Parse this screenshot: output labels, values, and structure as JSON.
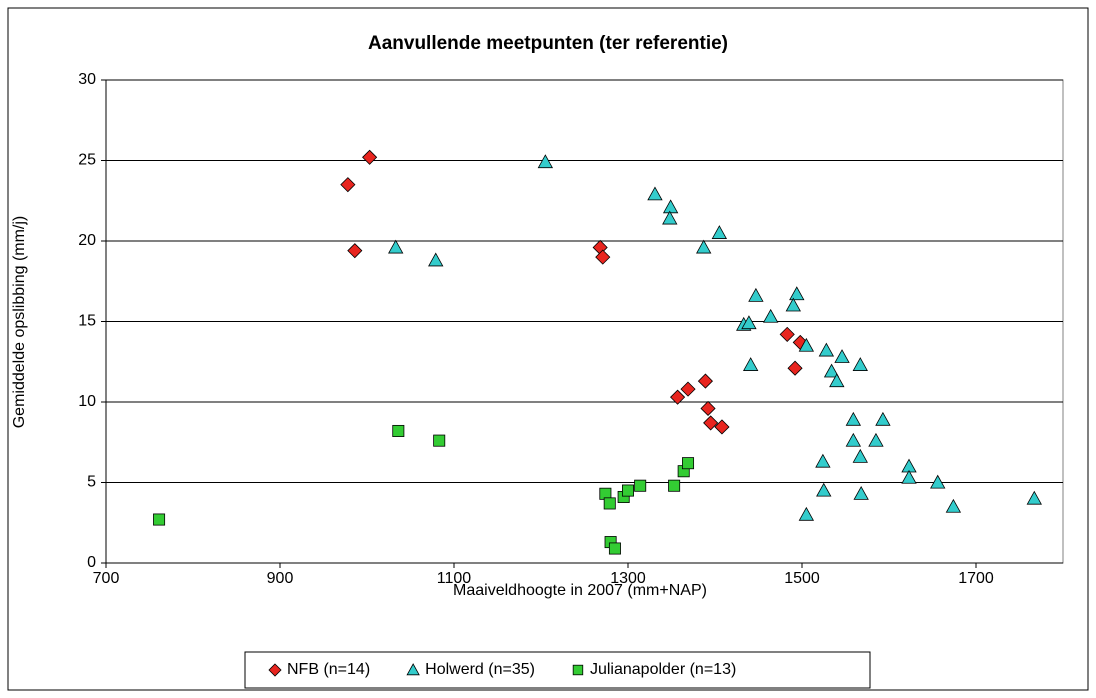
{
  "chart_data": {
    "type": "scatter",
    "title": "Aanvullende meetpunten (ter referentie)",
    "x_label": "Maaiveldhoogte in 2007 (mm+NAP)",
    "y_label": "Gemiddelde opslibbing (mm/j)",
    "xlim": [
      700,
      1800
    ],
    "xticks": [
      700,
      900,
      1100,
      1300,
      1500,
      1700
    ],
    "ylim": [
      0,
      30
    ],
    "yticks": [
      0,
      5,
      10,
      15,
      20,
      25,
      30
    ],
    "grid": true,
    "legend": "bottom",
    "series": [
      {
        "name": "NFB (n=14)",
        "color": "#e8251f",
        "marker": "diamond",
        "x": [
          978,
          1003,
          986,
          1268,
          1271,
          1483,
          1498,
          1492,
          1357,
          1369,
          1389,
          1392,
          1395,
          1408
        ],
        "values": [
          23.5,
          25.2,
          19.4,
          19.6,
          19.0,
          14.2,
          13.7,
          12.1,
          10.3,
          10.8,
          11.3,
          9.6,
          8.7,
          8.45
        ]
      },
      {
        "name": "Holwerd (n=35)",
        "color": "#33cccc",
        "marker": "triangle",
        "x": [
          1205,
          1033,
          1079,
          1331,
          1349,
          1348,
          1405,
          1387,
          1447,
          1494,
          1490,
          1464,
          1433,
          1439,
          1505,
          1441,
          1528,
          1546,
          1534,
          1540,
          1567,
          1559,
          1593,
          1559,
          1585,
          1567,
          1524,
          1623,
          1623,
          1656,
          1525,
          1568,
          1505,
          1674,
          1767
        ],
        "values": [
          24.9,
          19.6,
          18.8,
          22.9,
          22.1,
          21.4,
          20.5,
          19.6,
          16.6,
          16.7,
          16.0,
          15.3,
          14.8,
          14.9,
          13.5,
          12.3,
          13.2,
          12.8,
          11.9,
          11.3,
          12.3,
          8.9,
          8.9,
          7.6,
          7.6,
          6.6,
          6.3,
          6.0,
          5.3,
          5.0,
          4.5,
          4.3,
          3.0,
          3.5,
          4.0
        ]
      },
      {
        "name": "Julianapolder (n=13)",
        "color": "#33cc33",
        "marker": "square",
        "x": [
          761,
          1036,
          1083,
          1274,
          1279,
          1295,
          1300,
          1314,
          1353,
          1364,
          1369,
          1280,
          1285
        ],
        "values": [
          2.7,
          8.2,
          7.6,
          4.3,
          3.7,
          4.1,
          4.5,
          4.8,
          4.8,
          5.7,
          6.2,
          1.3,
          0.9
        ]
      }
    ]
  }
}
